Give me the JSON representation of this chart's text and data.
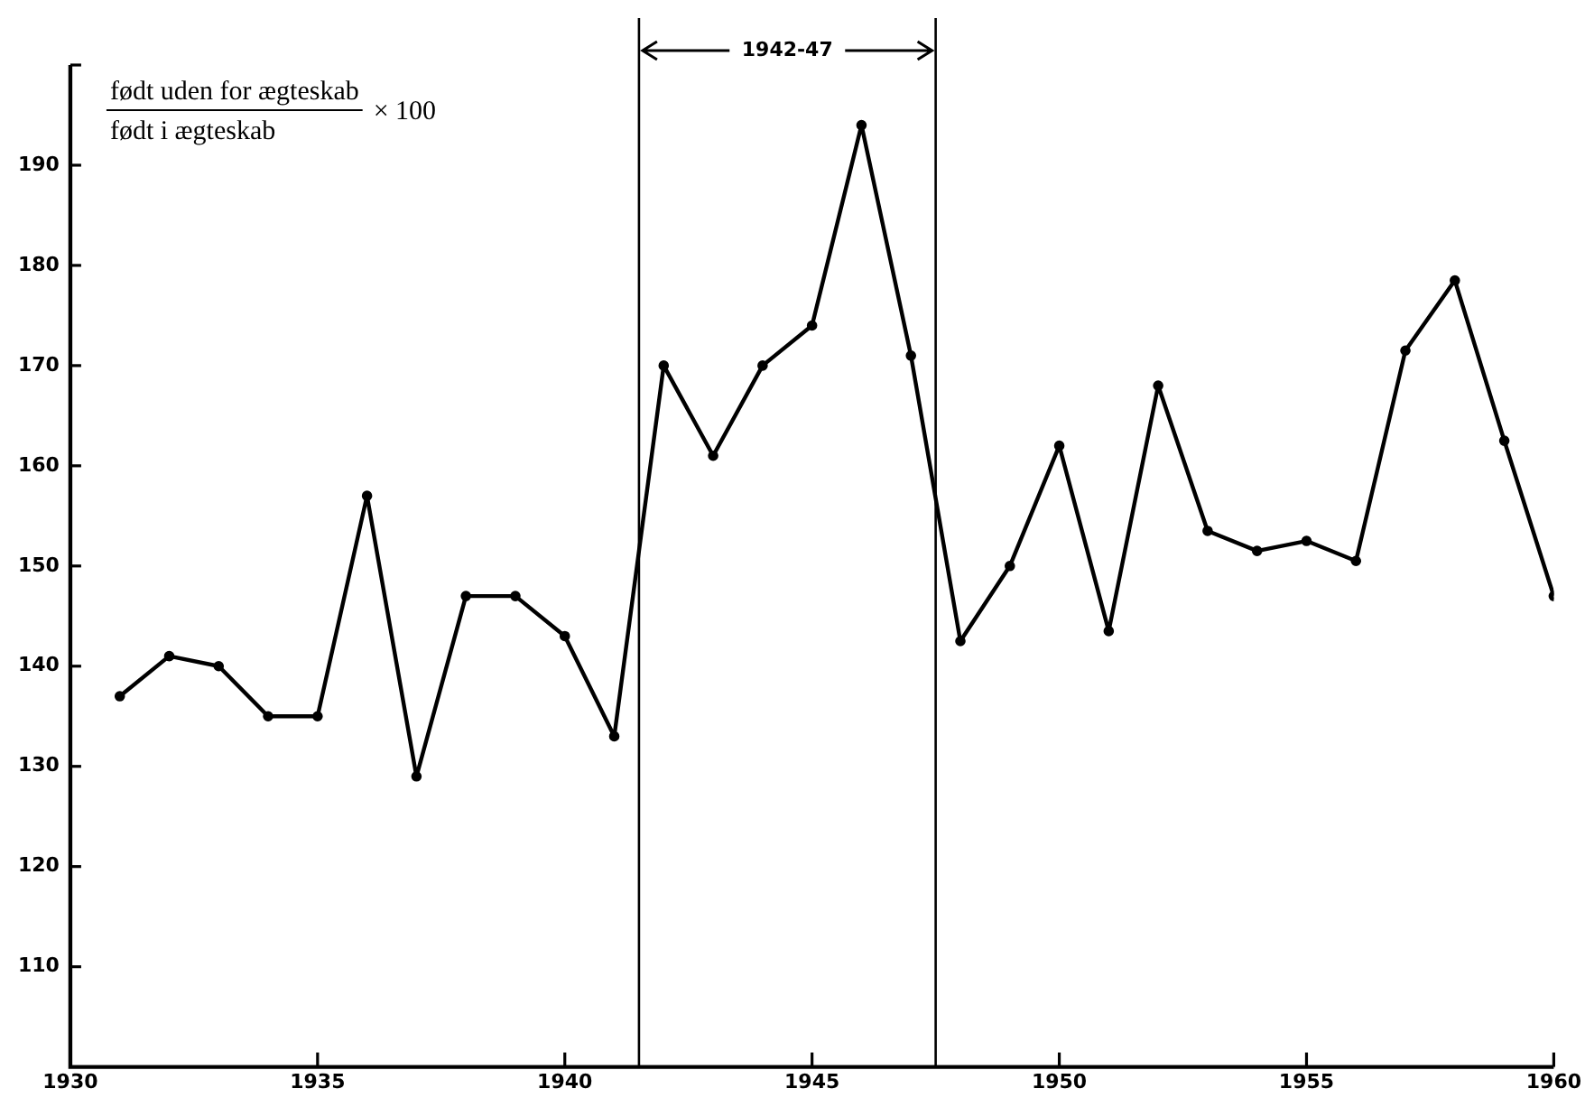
{
  "chart_data": {
    "type": "line",
    "annotations": [
      "1942-47",
      "født uden for ægteskab",
      "født i ægteskab",
      "× 100"
    ],
    "x": [
      1931,
      1932,
      1933,
      1934,
      1935,
      1936,
      1937,
      1938,
      1939,
      1940,
      1941,
      1942,
      1943,
      1944,
      1945,
      1946,
      1947,
      1948,
      1949,
      1950,
      1951,
      1952,
      1953,
      1954,
      1955,
      1956,
      1957,
      1958,
      1959,
      1960
    ],
    "series": [
      {
        "color": "#000000",
        "values": [
          137,
          141,
          140,
          135,
          135,
          157,
          129,
          147,
          147,
          143,
          133,
          170,
          161,
          170,
          174,
          194,
          171,
          142.5,
          150,
          162,
          143.5,
          168,
          153.5,
          151.5,
          152.5,
          150.5,
          171.5,
          178.5,
          162.5,
          147
        ]
      }
    ],
    "xlim": [
      1930,
      1960
    ],
    "xticks": [
      1930,
      1935,
      1940,
      1945,
      1950,
      1955,
      1960
    ],
    "ylim": [
      100,
      200
    ],
    "yticks": [
      110,
      120,
      130,
      140,
      150,
      160,
      170,
      180,
      190,
      {
        "value": 200,
        "label": null
      }
    ],
    "ref_lines": [
      {
        "axis": "x",
        "value": 1941.5
      },
      {
        "axis": "x",
        "value": 1947.5
      }
    ],
    "grid": false,
    "legend": false,
    "marker": "circle",
    "line_style": "solid"
  }
}
